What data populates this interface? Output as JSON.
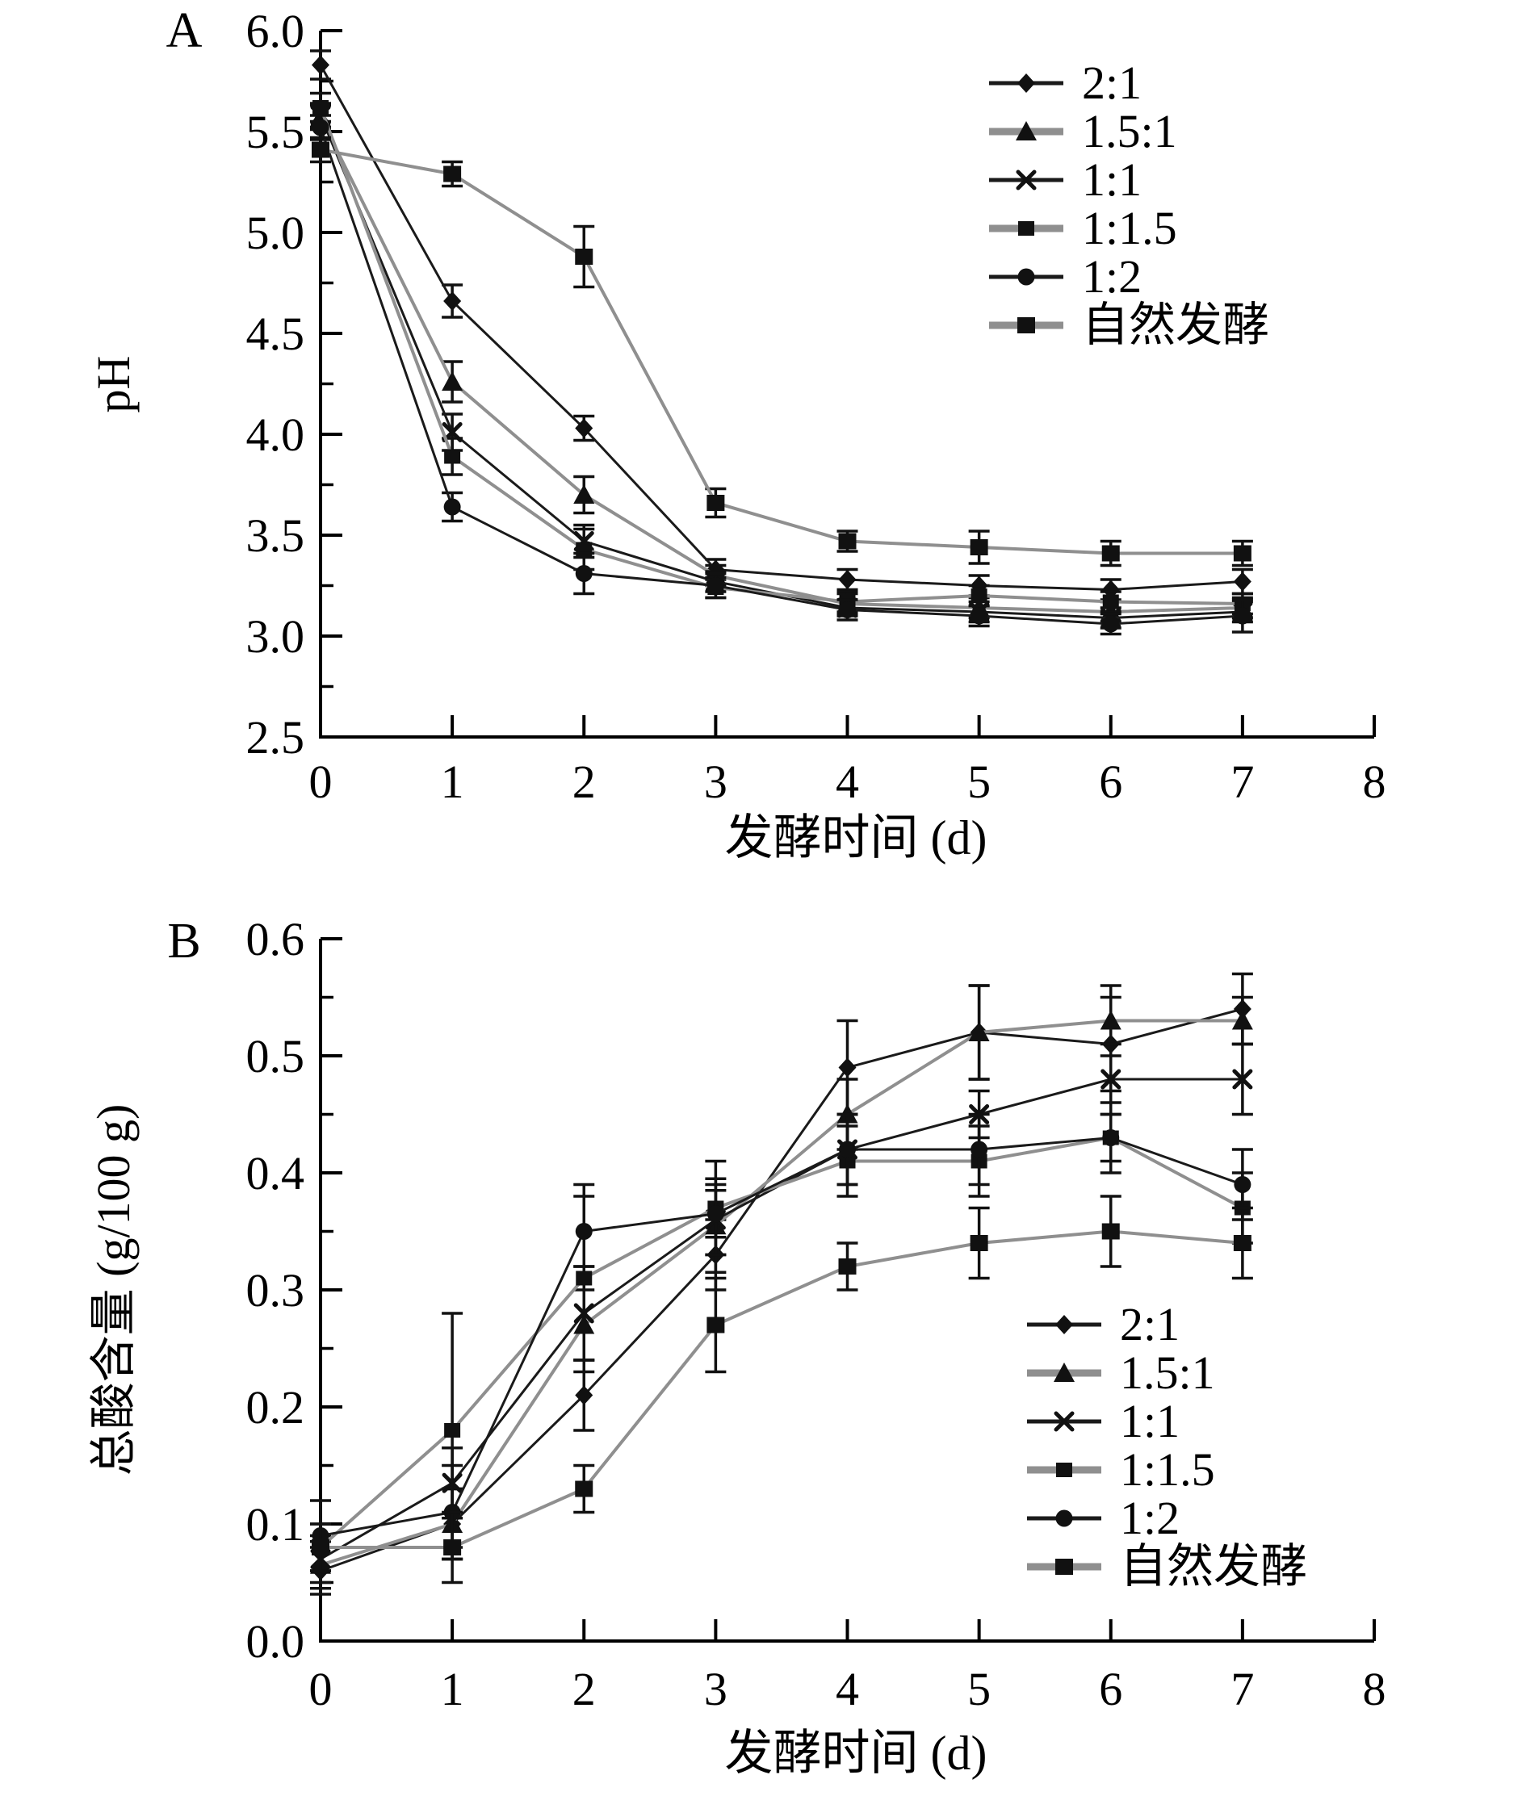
{
  "figure": {
    "background": "#ffffff",
    "text_color": "#000000",
    "axis_color": "#000000",
    "black_line_color": "#1a1a1a",
    "gray_line_color": "#8f8f8f",
    "marker_color": "#111111"
  },
  "chart_data": [
    {
      "type": "line",
      "panel_label": "A",
      "xlabel": "发酵时间 (d)",
      "ylabel": "pH",
      "x": [
        0,
        1,
        2,
        3,
        4,
        5,
        6,
        7
      ],
      "xlim": [
        0,
        8
      ],
      "xticks": [
        "0",
        "1",
        "2",
        "3",
        "4",
        "5",
        "6",
        "7",
        "8"
      ],
      "ylim": [
        2.5,
        6.0
      ],
      "yticks": [
        {
          "v": 2.5,
          "label": "2.5"
        },
        {
          "v": 3.0,
          "label": "3.0"
        },
        {
          "v": 3.5,
          "label": "3.5"
        },
        {
          "v": 4.0,
          "label": "4.0"
        },
        {
          "v": 4.5,
          "label": "4.5"
        },
        {
          "v": 5.0,
          "label": "5.0"
        },
        {
          "v": 5.5,
          "label": "5.5"
        },
        {
          "v": 6.0,
          "label": "6.0"
        }
      ],
      "grid": false,
      "error_bars": true,
      "legend_position": "top-right",
      "series": [
        {
          "name": "2:1",
          "marker": "diamond",
          "line_color": "#1a1a1a",
          "values": [
            5.83,
            4.66,
            4.03,
            3.33,
            3.28,
            3.25,
            3.23,
            3.27
          ],
          "errors": [
            0.07,
            0.08,
            0.06,
            0.05,
            0.05,
            0.05,
            0.05,
            0.06
          ]
        },
        {
          "name": "1.5:1",
          "marker": "triangle",
          "line_color": "#8f8f8f",
          "values": [
            5.57,
            4.26,
            3.7,
            3.3,
            3.16,
            3.14,
            3.12,
            3.14
          ],
          "errors": [
            0.06,
            0.1,
            0.09,
            0.05,
            0.05,
            0.05,
            0.05,
            0.05
          ]
        },
        {
          "name": "1:1",
          "marker": "x",
          "line_color": "#1a1a1a",
          "values": [
            5.58,
            4.01,
            3.47,
            3.27,
            3.14,
            3.12,
            3.09,
            3.12
          ],
          "errors": [
            0.06,
            0.09,
            0.08,
            0.05,
            0.04,
            0.05,
            0.05,
            0.05
          ]
        },
        {
          "name": "1:1.5",
          "marker": "square-small",
          "line_color": "#8f8f8f",
          "values": [
            5.62,
            3.89,
            3.43,
            3.24,
            3.17,
            3.2,
            3.17,
            3.16
          ],
          "errors": [
            0.07,
            0.09,
            0.1,
            0.05,
            0.05,
            0.05,
            0.05,
            0.05
          ]
        },
        {
          "name": "1:2",
          "marker": "circle",
          "line_color": "#1a1a1a",
          "values": [
            5.52,
            3.64,
            3.31,
            3.25,
            3.13,
            3.1,
            3.06,
            3.1
          ],
          "errors": [
            0.06,
            0.07,
            0.1,
            0.06,
            0.05,
            0.05,
            0.05,
            0.08
          ]
        },
        {
          "name": "自然发酵",
          "marker": "square",
          "line_color": "#8f8f8f",
          "values": [
            5.41,
            5.29,
            4.88,
            3.66,
            3.47,
            3.44,
            3.41,
            3.41
          ],
          "errors": [
            0.06,
            0.06,
            0.15,
            0.07,
            0.05,
            0.08,
            0.06,
            0.06
          ]
        }
      ]
    },
    {
      "type": "line",
      "panel_label": "B",
      "xlabel": "发酵时间 (d)",
      "ylabel": "总酸含量 (g/100 g)",
      "x": [
        0,
        1,
        2,
        3,
        4,
        5,
        6,
        7
      ],
      "xlim": [
        0,
        8
      ],
      "xticks": [
        "0",
        "1",
        "2",
        "3",
        "4",
        "5",
        "6",
        "7",
        "8"
      ],
      "ylim": [
        0.0,
        0.6
      ],
      "yticks": [
        {
          "v": 0.0,
          "label": "0.0"
        },
        {
          "v": 0.1,
          "label": "0.1"
        },
        {
          "v": 0.2,
          "label": "0.2"
        },
        {
          "v": 0.3,
          "label": "0.3"
        },
        {
          "v": 0.4,
          "label": "0.4"
        },
        {
          "v": 0.5,
          "label": "0.5"
        },
        {
          "v": 0.6,
          "label": "0.6"
        }
      ],
      "grid": false,
      "error_bars": true,
      "legend_position": "bottom-right",
      "series": [
        {
          "name": "2:1",
          "marker": "diamond",
          "line_color": "#1a1a1a",
          "values": [
            0.06,
            0.1,
            0.21,
            0.33,
            0.49,
            0.52,
            0.51,
            0.54
          ],
          "errors": [
            0.02,
            0.03,
            0.03,
            0.03,
            0.04,
            0.04,
            0.04,
            0.03
          ]
        },
        {
          "name": "1.5:1",
          "marker": "triangle",
          "line_color": "#8f8f8f",
          "values": [
            0.065,
            0.1,
            0.27,
            0.355,
            0.45,
            0.52,
            0.53,
            0.53
          ],
          "errors": [
            0.02,
            0.03,
            0.03,
            0.04,
            0.03,
            0.04,
            0.03,
            0.02
          ]
        },
        {
          "name": "1:1",
          "marker": "x",
          "line_color": "#1a1a1a",
          "values": [
            0.07,
            0.135,
            0.28,
            0.36,
            0.42,
            0.45,
            0.48,
            0.48
          ],
          "errors": [
            0.02,
            0.03,
            0.04,
            0.03,
            0.03,
            0.02,
            0.03,
            0.03
          ]
        },
        {
          "name": "1:1.5",
          "marker": "square-small",
          "line_color": "#8f8f8f",
          "values": [
            0.08,
            0.18,
            0.31,
            0.37,
            0.41,
            0.41,
            0.43,
            0.37
          ],
          "errors": [
            0.02,
            0.1,
            0.08,
            0.04,
            0.03,
            0.03,
            0.02,
            0.03
          ]
        },
        {
          "name": "1:2",
          "marker": "circle",
          "line_color": "#1a1a1a",
          "values": [
            0.09,
            0.11,
            0.35,
            0.365,
            0.42,
            0.42,
            0.43,
            0.39
          ],
          "errors": [
            0.03,
            0.04,
            0.03,
            0.02,
            0.03,
            0.03,
            0.03,
            0.03
          ]
        },
        {
          "name": "自然发酵",
          "marker": "square",
          "line_color": "#8f8f8f",
          "values": [
            0.08,
            0.08,
            0.13,
            0.27,
            0.32,
            0.34,
            0.35,
            0.34
          ],
          "errors": [
            0.02,
            0.03,
            0.02,
            0.04,
            0.02,
            0.03,
            0.03,
            0.03
          ]
        }
      ]
    }
  ]
}
